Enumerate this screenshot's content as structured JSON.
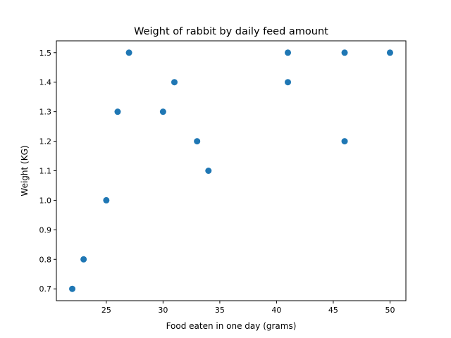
{
  "chart_data": {
    "type": "scatter",
    "title": "Weight of rabbit by daily feed amount",
    "xlabel": "Food eaten in one day (grams)",
    "ylabel": "Weight (KG)",
    "xlim": [
      20.6,
      51.4
    ],
    "ylim": [
      0.66,
      1.54
    ],
    "xticks": [
      25,
      30,
      35,
      40,
      45,
      50
    ],
    "yticks": [
      0.7,
      0.8,
      0.9,
      1.0,
      1.1,
      1.2,
      1.3,
      1.4,
      1.5
    ],
    "grid": false,
    "marker_color": "#1f77b4",
    "points": [
      {
        "x": 22,
        "y": 0.7
      },
      {
        "x": 23,
        "y": 0.8
      },
      {
        "x": 25,
        "y": 1.0
      },
      {
        "x": 26,
        "y": 1.3
      },
      {
        "x": 27,
        "y": 1.5
      },
      {
        "x": 30,
        "y": 1.3
      },
      {
        "x": 31,
        "y": 1.4
      },
      {
        "x": 33,
        "y": 1.2
      },
      {
        "x": 34,
        "y": 1.1
      },
      {
        "x": 41,
        "y": 1.5
      },
      {
        "x": 41,
        "y": 1.4
      },
      {
        "x": 46,
        "y": 1.5
      },
      {
        "x": 46,
        "y": 1.2
      },
      {
        "x": 50,
        "y": 1.5
      }
    ]
  }
}
